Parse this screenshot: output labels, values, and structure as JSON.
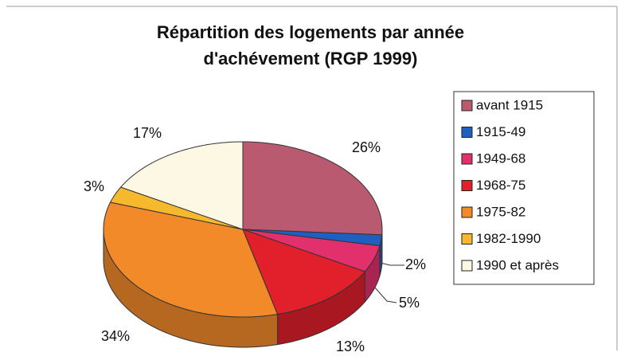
{
  "chart_data": {
    "type": "pie3d",
    "title": "Répartition des logements par année d'achévement (RGP 1999)",
    "categories": [
      "avant 1915",
      "1915-49",
      "1949-68",
      "1968-75",
      "1975-82",
      "1982-1990",
      "1990 et après"
    ],
    "values": [
      26,
      2,
      5,
      13,
      34,
      3,
      17
    ],
    "value_labels": [
      "26%",
      "2%",
      "5%",
      "13%",
      "34%",
      "3%",
      "17%"
    ],
    "colors": [
      "#b95a70",
      "#1f5fc0",
      "#e2306c",
      "#e1202c",
      "#f28a2a",
      "#f6b82c",
      "#fdf8e4"
    ],
    "legend": "right"
  }
}
